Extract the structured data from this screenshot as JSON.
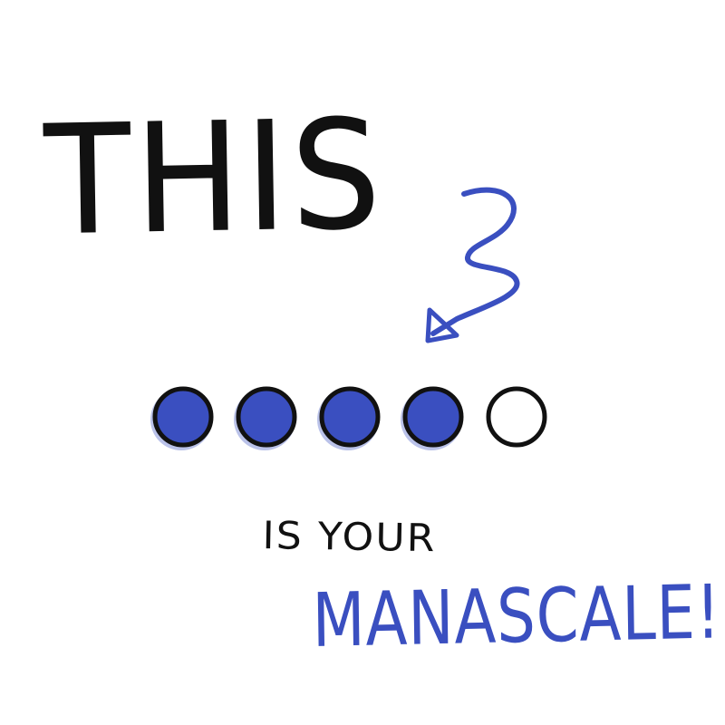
{
  "heading": "THIS",
  "subtitle": "IS YOUR",
  "brand": "MANASCALE!",
  "mana_scale": {
    "total": 5,
    "filled": 4
  },
  "colors": {
    "ink": "#111111",
    "mana_blue": "#3a4fc0",
    "background": "#ffffff"
  }
}
